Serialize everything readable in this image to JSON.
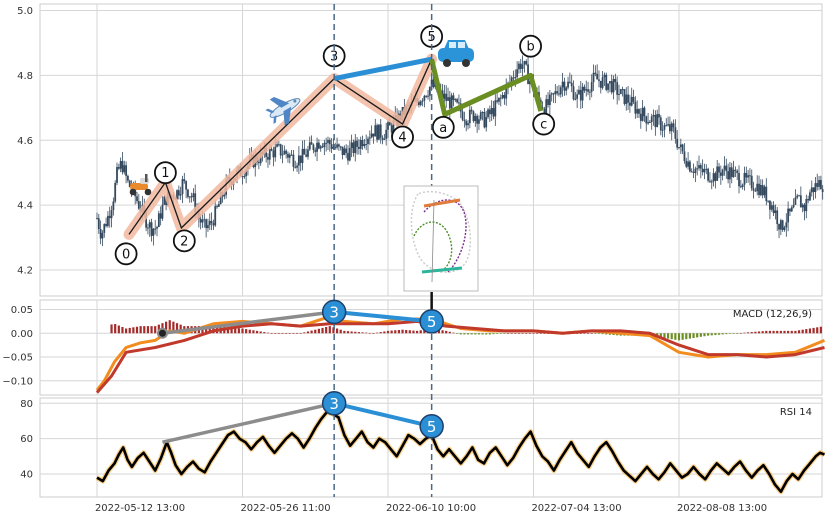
{
  "chart_data": {
    "type": "candlestick-with-indicators",
    "x_tick_labels": [
      "2022-05-12 13:00",
      "2022-05-26 11:00",
      "2022-06-10 10:00",
      "2022-07-04 13:00",
      "2022-08-08 13:00"
    ],
    "price_panel": {
      "ylim": [
        4.12,
        5.02
      ],
      "y_ticks": [
        4.2,
        4.4,
        4.6,
        4.8,
        5.0
      ],
      "y_tick_labels": [
        "4.2",
        "4.4",
        "4.6",
        "4.8",
        "5.0"
      ],
      "candle_color": "#34495e",
      "close_series": [
        [
          0,
          4.36
        ],
        [
          0.03,
          4.31
        ],
        [
          0.08,
          4.37
        ],
        [
          0.11,
          4.42
        ],
        [
          0.14,
          4.5
        ],
        [
          0.17,
          4.53
        ],
        [
          0.21,
          4.47
        ],
        [
          0.25,
          4.44
        ],
        [
          0.29,
          4.4
        ],
        [
          0.33,
          4.36
        ],
        [
          0.37,
          4.33
        ],
        [
          0.41,
          4.33
        ],
        [
          0.44,
          4.38
        ],
        [
          0.47,
          4.42
        ],
        [
          0.51,
          4.43
        ],
        [
          0.55,
          4.44
        ],
        [
          0.59,
          4.47
        ],
        [
          0.62,
          4.45
        ],
        [
          0.66,
          4.42
        ],
        [
          0.7,
          4.36
        ],
        [
          0.74,
          4.33
        ],
        [
          0.78,
          4.34
        ],
        [
          0.82,
          4.38
        ],
        [
          0.86,
          4.43
        ],
        [
          0.9,
          4.47
        ],
        [
          0.94,
          4.49
        ],
        [
          0.98,
          4.5
        ],
        [
          1.03,
          4.52
        ],
        [
          1.08,
          4.54
        ],
        [
          1.13,
          4.55
        ],
        [
          1.18,
          4.56
        ],
        [
          1.24,
          4.57
        ],
        [
          1.3,
          4.56
        ],
        [
          1.36,
          4.54
        ],
        [
          1.42,
          4.55
        ],
        [
          1.48,
          4.58
        ],
        [
          1.54,
          4.6
        ],
        [
          1.6,
          4.59
        ],
        [
          1.66,
          4.57
        ],
        [
          1.72,
          4.56
        ],
        [
          1.78,
          4.58
        ],
        [
          1.84,
          4.61
        ],
        [
          1.9,
          4.63
        ],
        [
          1.96,
          4.62
        ],
        [
          2.02,
          4.64
        ],
        [
          2.08,
          4.67
        ],
        [
          2.14,
          4.7
        ],
        [
          2.2,
          4.72
        ],
        [
          2.26,
          4.75
        ],
        [
          2.3,
          4.77
        ],
        [
          2.36,
          4.74
        ],
        [
          2.42,
          4.72
        ],
        [
          2.48,
          4.7
        ],
        [
          2.54,
          4.67
        ],
        [
          2.6,
          4.68
        ],
        [
          2.66,
          4.66
        ],
        [
          2.72,
          4.69
        ],
        [
          2.78,
          4.73
        ],
        [
          2.84,
          4.78
        ],
        [
          2.88,
          4.82
        ],
        [
          2.92,
          4.84
        ],
        [
          2.96,
          4.8
        ],
        [
          3.0,
          4.76
        ],
        [
          3.04,
          4.72
        ],
        [
          3.08,
          4.7
        ],
        [
          3.12,
          4.72
        ],
        [
          3.16,
          4.75
        ],
        [
          3.2,
          4.78
        ],
        [
          3.25,
          4.77
        ],
        [
          3.3,
          4.73
        ],
        [
          3.36,
          4.76
        ],
        [
          3.42,
          4.79
        ],
        [
          3.48,
          4.78
        ],
        [
          3.54,
          4.77
        ],
        [
          3.6,
          4.74
        ],
        [
          3.66,
          4.72
        ],
        [
          3.72,
          4.69
        ],
        [
          3.78,
          4.67
        ],
        [
          3.84,
          4.66
        ],
        [
          3.9,
          4.64
        ],
        [
          3.96,
          4.63
        ],
        [
          4.0,
          4.58
        ],
        [
          4.04,
          4.55
        ],
        [
          4.08,
          4.52
        ],
        [
          4.12,
          4.51
        ],
        [
          4.18,
          4.5
        ],
        [
          4.24,
          4.49
        ],
        [
          4.3,
          4.51
        ],
        [
          4.36,
          4.5
        ],
        [
          4.42,
          4.48
        ],
        [
          4.48,
          4.47
        ],
        [
          4.54,
          4.46
        ],
        [
          4.6,
          4.43
        ],
        [
          4.66,
          4.38
        ],
        [
          4.7,
          4.33
        ],
        [
          4.74,
          4.36
        ],
        [
          4.78,
          4.38
        ],
        [
          4.82,
          4.42
        ],
        [
          4.86,
          4.39
        ],
        [
          4.9,
          4.44
        ],
        [
          4.94,
          4.46
        ],
        [
          4.97,
          4.47
        ],
        [
          5.0,
          4.46
        ]
      ],
      "wave_labels": [
        {
          "label": "0",
          "x": 0.2,
          "y": 4.25
        },
        {
          "label": "1",
          "x": 0.47,
          "y": 4.5
        },
        {
          "label": "2",
          "x": 0.6,
          "y": 4.29
        },
        {
          "label": "3",
          "x": 1.63,
          "y": 4.86
        },
        {
          "label": "4",
          "x": 2.1,
          "y": 4.61
        },
        {
          "label": "5",
          "x": 2.3,
          "y": 4.92
        },
        {
          "label": "a",
          "x": 2.38,
          "y": 4.64
        },
        {
          "label": "b",
          "x": 2.98,
          "y": 4.89
        },
        {
          "label": "c",
          "x": 3.07,
          "y": 4.65
        }
      ],
      "impulse_path": [
        [
          0.22,
          4.31
        ],
        [
          0.47,
          4.47
        ],
        [
          0.58,
          4.33
        ],
        [
          1.63,
          4.79
        ],
        [
          2.1,
          4.65
        ],
        [
          2.3,
          4.85
        ]
      ],
      "wave_3_to_5": [
        [
          1.63,
          4.79
        ],
        [
          2.3,
          4.85
        ]
      ],
      "correction_path": [
        [
          2.3,
          4.85
        ],
        [
          2.39,
          4.68
        ],
        [
          2.98,
          4.8
        ],
        [
          3.05,
          4.69
        ]
      ],
      "icons": [
        "scooter-icon",
        "airplane-icon",
        "car-icon"
      ]
    },
    "macd_panel": {
      "label": "MACD (12,26,9)",
      "ylim": [
        -0.13,
        0.07
      ],
      "y_ticks": [
        -0.1,
        -0.05,
        0.0,
        0.05
      ],
      "y_tick_labels": [
        "−0.10",
        "−0.05",
        "0.00",
        "0.05"
      ],
      "macd_line": [
        [
          0,
          -0.12
        ],
        [
          0.05,
          -0.1
        ],
        [
          0.12,
          -0.06
        ],
        [
          0.2,
          -0.03
        ],
        [
          0.3,
          -0.02
        ],
        [
          0.4,
          -0.015
        ],
        [
          0.5,
          0.005
        ],
        [
          0.6,
          0.0
        ],
        [
          0.7,
          0.01
        ],
        [
          0.8,
          0.02
        ],
        [
          1.0,
          0.025
        ],
        [
          1.2,
          0.02
        ],
        [
          1.4,
          0.015
        ],
        [
          1.6,
          0.035
        ],
        [
          1.7,
          0.025
        ],
        [
          1.9,
          0.02
        ],
        [
          2.1,
          0.03
        ],
        [
          2.3,
          0.03
        ],
        [
          2.5,
          0.01
        ],
        [
          2.7,
          0.005
        ],
        [
          3.0,
          0.005
        ],
        [
          3.2,
          0.0
        ],
        [
          3.4,
          0.005
        ],
        [
          3.6,
          0.0
        ],
        [
          3.8,
          -0.005
        ],
        [
          4.0,
          -0.04
        ],
        [
          4.2,
          -0.05
        ],
        [
          4.4,
          -0.045
        ],
        [
          4.6,
          -0.045
        ],
        [
          4.8,
          -0.04
        ],
        [
          5.0,
          -0.015
        ]
      ],
      "signal_line": [
        [
          0,
          -0.125
        ],
        [
          0.1,
          -0.09
        ],
        [
          0.2,
          -0.04
        ],
        [
          0.4,
          -0.03
        ],
        [
          0.6,
          -0.015
        ],
        [
          0.8,
          0.005
        ],
        [
          1.0,
          0.015
        ],
        [
          1.2,
          0.02
        ],
        [
          1.4,
          0.015
        ],
        [
          1.6,
          0.02
        ],
        [
          1.8,
          0.02
        ],
        [
          2.0,
          0.02
        ],
        [
          2.2,
          0.025
        ],
        [
          2.4,
          0.015
        ],
        [
          2.6,
          0.01
        ],
        [
          2.8,
          0.005
        ],
        [
          3.0,
          0.005
        ],
        [
          3.2,
          0.0
        ],
        [
          3.4,
          0.005
        ],
        [
          3.6,
          0.005
        ],
        [
          3.8,
          0.0
        ],
        [
          4.0,
          -0.025
        ],
        [
          4.2,
          -0.045
        ],
        [
          4.4,
          -0.045
        ],
        [
          4.6,
          -0.05
        ],
        [
          4.8,
          -0.045
        ],
        [
          5.0,
          -0.03
        ]
      ],
      "divergence_marks": [
        {
          "label": "3",
          "x": 1.63,
          "y": 0.045
        },
        {
          "label": "5",
          "x": 2.3,
          "y": 0.025
        }
      ]
    },
    "rsi_panel": {
      "label": "RSI 14",
      "ylim": [
        27,
        83
      ],
      "y_ticks": [
        40,
        60,
        80
      ],
      "y_tick_labels": [
        "40",
        "60",
        "80"
      ],
      "rsi_series": [
        [
          0,
          38
        ],
        [
          0.04,
          36
        ],
        [
          0.08,
          42
        ],
        [
          0.12,
          46
        ],
        [
          0.15,
          51
        ],
        [
          0.18,
          55
        ],
        [
          0.21,
          48
        ],
        [
          0.24,
          44
        ],
        [
          0.28,
          49
        ],
        [
          0.32,
          52
        ],
        [
          0.36,
          47
        ],
        [
          0.4,
          42
        ],
        [
          0.44,
          49
        ],
        [
          0.48,
          58
        ],
        [
          0.51,
          52
        ],
        [
          0.54,
          45
        ],
        [
          0.58,
          40
        ],
        [
          0.62,
          44
        ],
        [
          0.66,
          47
        ],
        [
          0.7,
          43
        ],
        [
          0.74,
          41
        ],
        [
          0.78,
          47
        ],
        [
          0.82,
          52
        ],
        [
          0.86,
          57
        ],
        [
          0.9,
          62
        ],
        [
          0.94,
          64
        ],
        [
          0.98,
          60
        ],
        [
          1.02,
          58
        ],
        [
          1.06,
          54
        ],
        [
          1.1,
          58
        ],
        [
          1.14,
          61
        ],
        [
          1.18,
          56
        ],
        [
          1.22,
          52
        ],
        [
          1.26,
          56
        ],
        [
          1.3,
          60
        ],
        [
          1.34,
          63
        ],
        [
          1.38,
          60
        ],
        [
          1.42,
          55
        ],
        [
          1.46,
          60
        ],
        [
          1.5,
          66
        ],
        [
          1.54,
          71
        ],
        [
          1.58,
          75
        ],
        [
          1.62,
          74
        ],
        [
          1.66,
          72
        ],
        [
          1.7,
          62
        ],
        [
          1.74,
          56
        ],
        [
          1.78,
          60
        ],
        [
          1.82,
          64
        ],
        [
          1.86,
          58
        ],
        [
          1.9,
          55
        ],
        [
          1.94,
          60
        ],
        [
          1.98,
          58
        ],
        [
          2.02,
          54
        ],
        [
          2.06,
          50
        ],
        [
          2.1,
          56
        ],
        [
          2.14,
          62
        ],
        [
          2.18,
          60
        ],
        [
          2.22,
          57
        ],
        [
          2.26,
          60
        ],
        [
          2.3,
          62
        ],
        [
          2.34,
          54
        ],
        [
          2.38,
          50
        ],
        [
          2.42,
          54
        ],
        [
          2.46,
          50
        ],
        [
          2.5,
          46
        ],
        [
          2.54,
          50
        ],
        [
          2.58,
          55
        ],
        [
          2.62,
          48
        ],
        [
          2.66,
          46
        ],
        [
          2.7,
          52
        ],
        [
          2.74,
          55
        ],
        [
          2.78,
          50
        ],
        [
          2.82,
          45
        ],
        [
          2.86,
          49
        ],
        [
          2.9,
          55
        ],
        [
          2.94,
          60
        ],
        [
          2.98,
          64
        ],
        [
          3.02,
          56
        ],
        [
          3.06,
          50
        ],
        [
          3.1,
          47
        ],
        [
          3.14,
          42
        ],
        [
          3.18,
          48
        ],
        [
          3.22,
          53
        ],
        [
          3.26,
          58
        ],
        [
          3.3,
          52
        ],
        [
          3.34,
          48
        ],
        [
          3.38,
          44
        ],
        [
          3.42,
          50
        ],
        [
          3.46,
          55
        ],
        [
          3.5,
          58
        ],
        [
          3.54,
          53
        ],
        [
          3.58,
          47
        ],
        [
          3.62,
          42
        ],
        [
          3.66,
          39
        ],
        [
          3.7,
          36
        ],
        [
          3.74,
          40
        ],
        [
          3.78,
          44
        ],
        [
          3.82,
          40
        ],
        [
          3.86,
          37
        ],
        [
          3.9,
          41
        ],
        [
          3.94,
          46
        ],
        [
          3.98,
          42
        ],
        [
          4.02,
          38
        ],
        [
          4.06,
          40
        ],
        [
          4.1,
          44
        ],
        [
          4.14,
          40
        ],
        [
          4.18,
          37
        ],
        [
          4.22,
          42
        ],
        [
          4.26,
          46
        ],
        [
          4.3,
          43
        ],
        [
          4.34,
          40
        ],
        [
          4.38,
          44
        ],
        [
          4.42,
          47
        ],
        [
          4.46,
          42
        ],
        [
          4.5,
          38
        ],
        [
          4.54,
          42
        ],
        [
          4.58,
          45
        ],
        [
          4.62,
          40
        ],
        [
          4.66,
          34
        ],
        [
          4.7,
          30
        ],
        [
          4.74,
          36
        ],
        [
          4.78,
          40
        ],
        [
          4.82,
          37
        ],
        [
          4.86,
          42
        ],
        [
          4.9,
          46
        ],
        [
          4.94,
          50
        ],
        [
          4.97,
          52
        ],
        [
          5.0,
          51
        ]
      ],
      "divergence_marks": [
        {
          "label": "3",
          "x": 1.63,
          "y": 80
        },
        {
          "label": "5",
          "x": 2.3,
          "y": 67
        }
      ]
    },
    "colors": {
      "impulse_band": "#f2b8a0",
      "impulse_line": "#1a1a1a",
      "wave_3_to_5": "#2a8fd4",
      "correction": "#6b8e23",
      "macd_line": "#f28c1e",
      "signal_line": "#c0392b",
      "histogram_positive": "#a52a2a",
      "histogram_negative": "#6b8e23",
      "trend_line": "#8c8c8c",
      "rsi_line": "#000000",
      "rsi_glow": "#f5a623",
      "vline": "#4a6785",
      "divergence_marker": "#2a8fd4"
    },
    "grid": true
  }
}
